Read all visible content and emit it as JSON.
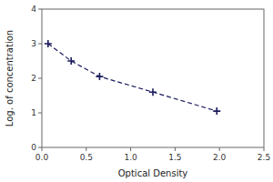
{
  "chart_data": {
    "type": "line",
    "x": [
      0.07,
      0.33,
      0.65,
      1.25,
      1.97
    ],
    "values": [
      3.0,
      2.5,
      2.05,
      1.6,
      1.05
    ],
    "xlabel": "Optical Density",
    "ylabel": "Log. of concentration",
    "xlim": [
      0,
      2.5
    ],
    "ylim": [
      0,
      4
    ],
    "xticks": [
      {
        "value": 0,
        "label": "0.0"
      },
      0.5,
      {
        "value": 1,
        "label": "1.0"
      },
      1.5,
      {
        "value": 2,
        "label": "2.0"
      },
      2.5
    ],
    "yticks": [
      0,
      1,
      2,
      3,
      4
    ],
    "color": "#1a1a5e",
    "marker": "plus",
    "line_style": "dashed",
    "grid": false
  }
}
